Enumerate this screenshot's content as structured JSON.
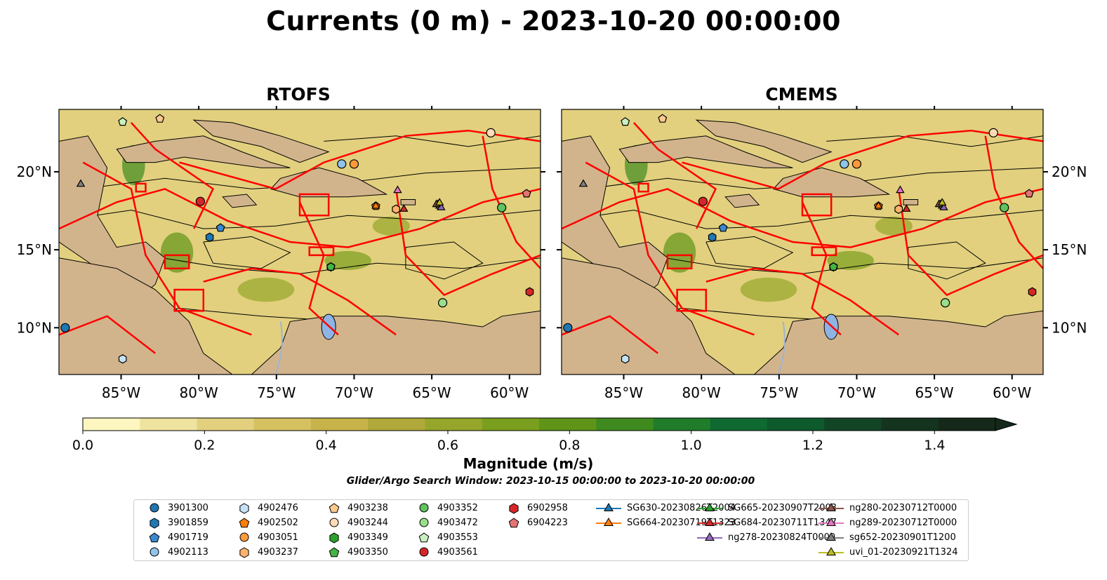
{
  "title": "Currents (0 m) - 2023-10-20 00:00:00",
  "colors": {
    "land": "#d2b48c",
    "front": "#ff0000",
    "lake": "#8eb4e3",
    "river": "#a0b4d0",
    "colormap": [
      "#fdf6c0",
      "#efe3a0",
      "#e2d07e",
      "#d5c160",
      "#c8b34a",
      "#b0a83a",
      "#96a62a",
      "#7a9f1e",
      "#5f9418",
      "#3f8a1e",
      "#1f7d2a",
      "#0e6a30",
      "#0d5a2c",
      "#124526",
      "#14341f",
      "#15291a"
    ]
  },
  "chart_data": [
    {
      "type": "heatmap",
      "title": "RTOFS",
      "xticks": [
        "85°W",
        "80°W",
        "75°W",
        "70°W",
        "65°W",
        "60°W"
      ],
      "xtick_values": [
        -85,
        -80,
        -75,
        -70,
        -65,
        -60
      ],
      "yticks": [
        "20°N",
        "15°N",
        "10°N"
      ],
      "ytick_values": [
        20,
        15,
        10
      ],
      "xlim": [
        -89,
        -58
      ],
      "ylim": [
        7,
        24
      ],
      "ytick_side": "left"
    },
    {
      "type": "heatmap",
      "title": "CMEMS",
      "xticks": [
        "85°W",
        "80°W",
        "75°W",
        "70°W",
        "65°W",
        "60°W"
      ],
      "xtick_values": [
        -85,
        -80,
        -75,
        -70,
        -65,
        -60
      ],
      "yticks": [
        "20°N",
        "15°N",
        "10°N"
      ],
      "ytick_values": [
        20,
        15,
        10
      ],
      "xlim": [
        -89,
        -58
      ],
      "ylim": [
        7,
        24
      ],
      "ytick_side": "right"
    }
  ],
  "colorbar": {
    "label": "Magnitude (m/s)",
    "ticks": [
      "0.0",
      "0.2",
      "0.4",
      "0.6",
      "0.8",
      "1.0",
      "1.2",
      "1.4"
    ],
    "tick_values": [
      0,
      0.2,
      0.4,
      0.6,
      0.8,
      1.0,
      1.2,
      1.4
    ],
    "range": [
      0,
      1.5
    ],
    "extend": "max"
  },
  "search_window": "Glider/Argo Search Window: 2023-10-15 00:00:00 to 2023-10-20 00:00:00",
  "platforms": [
    {
      "id": "3901300",
      "marker": "circle",
      "color": "#1f77b4",
      "lon": -88.6,
      "lat": 10.0
    },
    {
      "id": "3901859",
      "marker": "hexagon",
      "color": "#1f77b4",
      "lon": -79.3,
      "lat": 15.8
    },
    {
      "id": "4901719",
      "marker": "pentagon",
      "color": "#3a88d0",
      "lon": -78.6,
      "lat": 16.4
    },
    {
      "id": "4902113",
      "marker": "circle",
      "color": "#8fc3ea",
      "lon": -70.8,
      "lat": 20.5
    },
    {
      "id": "4902476",
      "marker": "hexagon",
      "color": "#c6e2f5",
      "lon": -84.9,
      "lat": 8.0
    },
    {
      "id": "4902502",
      "marker": "pentagon",
      "color": "#ff7f0e",
      "lon": -68.6,
      "lat": 17.8
    },
    {
      "id": "4903051",
      "marker": "circle",
      "color": "#ff9a3c",
      "lon": -70.0,
      "lat": 20.5
    },
    {
      "id": "4903237",
      "marker": "hexagon",
      "color": "#ffb26b",
      "lon": -67.3,
      "lat": 17.6
    },
    {
      "id": "4903238",
      "marker": "pentagon",
      "color": "#ffc88f",
      "lon": -82.5,
      "lat": 23.4
    },
    {
      "id": "4903244",
      "marker": "circle",
      "color": "#ffdcb5",
      "lon": -61.2,
      "lat": 22.5
    },
    {
      "id": "4903349",
      "marker": "hexagon",
      "color": "#2ca02c",
      "lon": -71.5,
      "lat": 13.9
    },
    {
      "id": "4903350",
      "marker": "pentagon",
      "color": "#44b444",
      "lon": -71.5,
      "lat": 13.9
    },
    {
      "id": "4903352",
      "marker": "circle",
      "color": "#5fc35f",
      "lon": -60.5,
      "lat": 17.7
    },
    {
      "id": "4903472",
      "marker": "circle",
      "color": "#98df8a",
      "lon": -64.3,
      "lat": 11.6
    },
    {
      "id": "4903553",
      "marker": "pentagon",
      "color": "#c9f0c0",
      "lon": -84.9,
      "lat": 23.2
    },
    {
      "id": "4903561",
      "marker": "circle",
      "color": "#d62728",
      "lon": -79.9,
      "lat": 18.1
    },
    {
      "id": "6902958",
      "marker": "hexagon",
      "color": "#d62728",
      "lon": -58.7,
      "lat": 12.3
    },
    {
      "id": "6904223",
      "marker": "pentagon",
      "color": "#e57373",
      "lon": -58.9,
      "lat": 18.6
    },
    {
      "id": "SG630-20230826T2004",
      "marker": "triangle",
      "color": "#1f77b4",
      "lon": -64.6,
      "lat": 17.9
    },
    {
      "id": "SG664-20230719T1323",
      "marker": "triangle",
      "color": "#ff7f0e",
      "lon": -68.6,
      "lat": 17.8
    },
    {
      "id": "SG665-20230907T2003",
      "marker": "triangle",
      "color": "#2ca02c",
      "lon": -64.5,
      "lat": 17.8
    },
    {
      "id": "SG684-20230711T1347",
      "marker": "triangle",
      "color": "#d62728",
      "lon": -66.8,
      "lat": 17.6
    },
    {
      "id": "ng278-20230824T0000",
      "marker": "triangle",
      "color": "#9467bd",
      "lon": -64.4,
      "lat": 17.7
    },
    {
      "id": "ng280-20230712T0000",
      "marker": "triangle",
      "color": "#8c564b",
      "lon": -64.7,
      "lat": 17.9
    },
    {
      "id": "ng289-20230712T0000",
      "marker": "triangle",
      "color": "#e377c2",
      "lon": -67.2,
      "lat": 18.8
    },
    {
      "id": "sg652-20230901T1200",
      "marker": "triangle",
      "color": "#7f7f7f",
      "lon": -87.6,
      "lat": 19.2
    },
    {
      "id": "uvi_01-20230921T1324",
      "marker": "triangle",
      "color": "#bcbd22",
      "lon": -64.5,
      "lat": 18.0
    }
  ]
}
